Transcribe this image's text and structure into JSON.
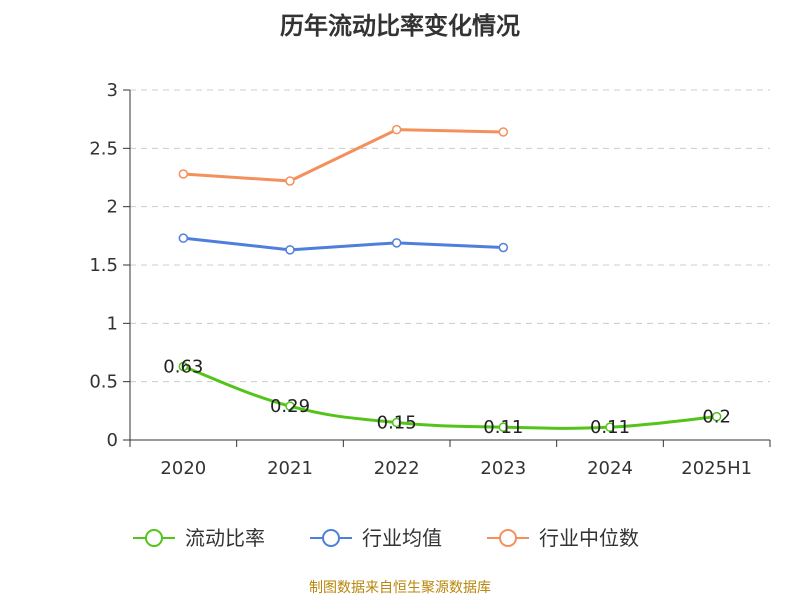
{
  "chart_data": {
    "type": "line",
    "title": "历年流动比率变化情况",
    "source_note": "制图数据来自恒生聚源数据库",
    "categories": [
      "2020",
      "2021",
      "2022",
      "2023",
      "2024",
      "2025H1"
    ],
    "ylim": [
      0,
      3
    ],
    "yticks": [
      "0",
      "0.5",
      "1",
      "1.5",
      "2",
      "2.5",
      "3"
    ],
    "grid": true,
    "legend_position": "bottom",
    "series": [
      {
        "name": "流动比率",
        "color": "#52c41a",
        "values": [
          0.63,
          0.29,
          0.15,
          0.11,
          0.11,
          0.2
        ],
        "labels": [
          "0.63",
          "0.29",
          "0.15",
          "0.11",
          "0.11",
          "0.2"
        ],
        "show_labels": true
      },
      {
        "name": "行业均值",
        "color": "#4f7fdc",
        "values": [
          1.73,
          1.63,
          1.69,
          1.65,
          null,
          null
        ],
        "show_labels": false
      },
      {
        "name": "行业中位数",
        "color": "#f4905b",
        "values": [
          2.28,
          2.22,
          2.66,
          2.64,
          null,
          null
        ],
        "show_labels": false
      }
    ]
  }
}
